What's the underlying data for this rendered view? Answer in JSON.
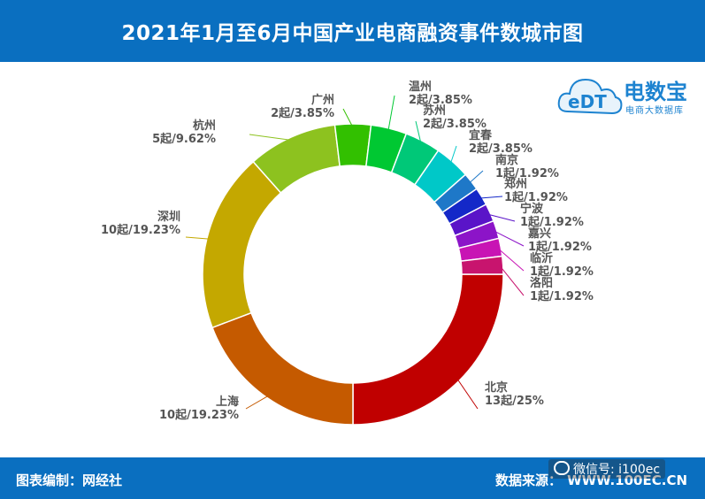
{
  "header": {
    "title": "2021年1月至6月中国产业电商融资事件数城市图"
  },
  "logo": {
    "brand": "电数宝",
    "subtitle": "电商大数据库",
    "mark": "eDT"
  },
  "footer": {
    "left": "图表编制：网经社",
    "source_label": "数据来源：",
    "source_url": "WWW.100EC.CN"
  },
  "watermark": {
    "text": "微信号: i100ec"
  },
  "chart_data": {
    "type": "pie",
    "donut": true,
    "slices": [
      {
        "name": "北京",
        "value": 13,
        "label": "13起/25%",
        "color": "#c00000"
      },
      {
        "name": "上海",
        "value": 10,
        "label": "10起/19.23%",
        "color": "#c55a00"
      },
      {
        "name": "深圳",
        "value": 10,
        "label": "10起/19.23%",
        "color": "#c4a800"
      },
      {
        "name": "杭州",
        "value": 5,
        "label": "5起/9.62%",
        "color": "#8dc21f"
      },
      {
        "name": "广州",
        "value": 2,
        "label": "2起/3.85%",
        "color": "#32c000"
      },
      {
        "name": "温州",
        "value": 2,
        "label": "2起/3.85%",
        "color": "#00c832"
      },
      {
        "name": "苏州",
        "value": 2,
        "label": "2起/3.85%",
        "color": "#00c878"
      },
      {
        "name": "宜春",
        "value": 2,
        "label": "2起/3.85%",
        "color": "#00c8c8"
      },
      {
        "name": "南京",
        "value": 1,
        "label": "1起/1.92%",
        "color": "#1e78c8"
      },
      {
        "name": "郑州",
        "value": 1,
        "label": "1起/1.92%",
        "color": "#1428c8"
      },
      {
        "name": "宁波",
        "value": 1,
        "label": "1起/1.92%",
        "color": "#5a14c8"
      },
      {
        "name": "嘉兴",
        "value": 1,
        "label": "1起/1.92%",
        "color": "#8c14c8"
      },
      {
        "name": "临沂",
        "value": 1,
        "label": "1起/1.92%",
        "color": "#c814b4"
      },
      {
        "name": "洛阳",
        "value": 1,
        "label": "1起/1.92%",
        "color": "#c8146e"
      }
    ]
  }
}
